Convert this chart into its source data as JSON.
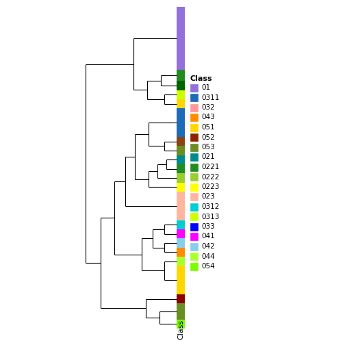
{
  "figsize": [
    5.04,
    5.04
  ],
  "dpi": 100,
  "strip_colors_top_to_bottom": [
    "#9370DB",
    "#228B22",
    "#006400",
    "#CCFF00",
    "#FFD700",
    "#1E6BB8",
    "#8B4513",
    "#6B8E23",
    "#008B8B",
    "#228B22",
    "#9ACD32",
    "#FFFF00",
    "#FFB6A0",
    "#00CED1",
    "#FF00FF",
    "#87CEEB",
    "#FF8C00",
    "#ADFF2F",
    "#FFD700",
    "#8B0000",
    "#6B8E23",
    "#7CFC00"
  ],
  "strip_heights": [
    5.5,
    1.0,
    0.8,
    0.8,
    0.8,
    2.5,
    0.8,
    0.8,
    0.8,
    0.8,
    0.8,
    0.8,
    2.5,
    0.8,
    0.8,
    0.8,
    0.8,
    0.8,
    2.5,
    0.8,
    1.4,
    0.8
  ],
  "legend_items": [
    {
      "label": "01",
      "color": "#9370DB"
    },
    {
      "label": "0311",
      "color": "#1E6BB8"
    },
    {
      "label": "032",
      "color": "#FF9999"
    },
    {
      "label": "043",
      "color": "#FF8C00"
    },
    {
      "label": "051",
      "color": "#FFD700"
    },
    {
      "label": "052",
      "color": "#8B2500"
    },
    {
      "label": "053",
      "color": "#6B8E23"
    },
    {
      "label": "021",
      "color": "#008B8B"
    },
    {
      "label": "0221",
      "color": "#228B22"
    },
    {
      "label": "0222",
      "color": "#9ACD32"
    },
    {
      "label": "0223",
      "color": "#FFFF00"
    },
    {
      "label": "023",
      "color": "#FFB6A0"
    },
    {
      "label": "0312",
      "color": "#00CED1"
    },
    {
      "label": "0313",
      "color": "#CCFF00"
    },
    {
      "label": "033",
      "color": "#0000FF"
    },
    {
      "label": "041",
      "color": "#FF00FF"
    },
    {
      "label": "042",
      "color": "#87CEEB"
    },
    {
      "label": "044",
      "color": "#ADFF2F"
    },
    {
      "label": "054",
      "color": "#7CFC00"
    }
  ],
  "xlabel": "Class"
}
